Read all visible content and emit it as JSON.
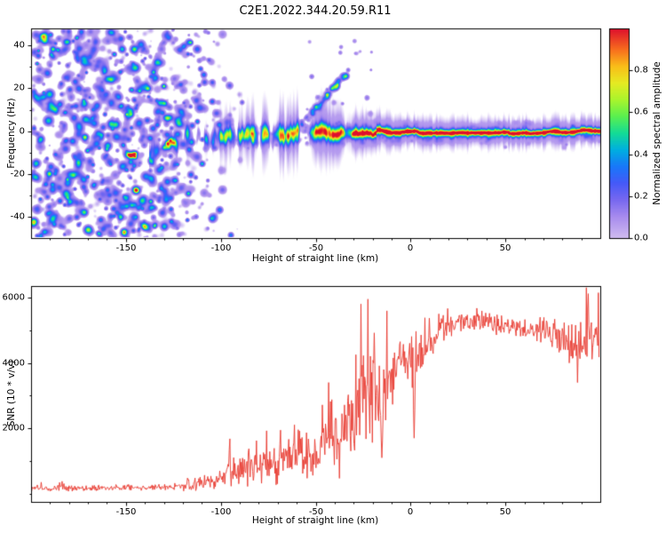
{
  "chart_data": [
    {
      "type": "heatmap",
      "title": "C2E1.2022.344.20.59.R11",
      "xlabel": "Height of straight line (km)",
      "ylabel": "Frequency (Hz)",
      "xlim": [
        -200,
        100
      ],
      "ylim": [
        -50,
        48
      ],
      "xticks": [
        -150,
        -100,
        -50,
        0,
        50
      ],
      "yticks": [
        -40,
        -20,
        0,
        20,
        40
      ],
      "grid": false,
      "background": "#ffffff",
      "axis_color": "#000000",
      "colorbar": {
        "label": "Normalized spectral amplitude",
        "ticks": [
          0.0,
          0.2,
          0.4,
          0.6,
          0.8
        ],
        "range": [
          0,
          1
        ],
        "colormap_stops": [
          [
            0.0,
            "#cfbaf0"
          ],
          [
            0.1,
            "#a88cee"
          ],
          [
            0.18,
            "#7869f0"
          ],
          [
            0.26,
            "#465af8"
          ],
          [
            0.34,
            "#1978fa"
          ],
          [
            0.42,
            "#00afe1"
          ],
          [
            0.5,
            "#14dc96"
          ],
          [
            0.58,
            "#5af050"
          ],
          [
            0.66,
            "#aaf52d"
          ],
          [
            0.74,
            "#e6eb23"
          ],
          [
            0.82,
            "#fabe19"
          ],
          [
            0.9,
            "#f86e1e"
          ],
          [
            1.0,
            "#de0f2d"
          ]
        ]
      },
      "noise": {
        "count": 1100,
        "x_range": [
          -200,
          -84
        ],
        "density_breaks": [
          [
            -200,
            1.0
          ],
          [
            -132,
            0.95
          ],
          [
            -115,
            0.5
          ],
          [
            -102,
            0.15
          ],
          [
            -84,
            0.01
          ]
        ],
        "amp_range": [
          0.04,
          0.4
        ],
        "sigma_range": [
          1.0,
          3.1
        ]
      },
      "halo_noise": {
        "count": 230,
        "x_range": [
          -95,
          100
        ],
        "f_spread": 7,
        "amp_range": [
          0.03,
          0.09
        ]
      },
      "streak": {
        "x_start": -58,
        "x_end": -33,
        "f_start": 3,
        "f_end": 28,
        "count": 70,
        "amp_range": [
          0.05,
          0.2
        ]
      },
      "sparse_dots": {
        "count": 18,
        "x_range": [
          -60,
          -20
        ],
        "f_range": [
          5,
          45
        ],
        "amp_range": [
          0.05,
          0.18
        ]
      },
      "clusters": [
        {
          "x": -147,
          "f": -11,
          "sx": 5,
          "sf": 4,
          "count": 14,
          "amp": 0.32
        },
        {
          "x": -128,
          "f": -6,
          "sx": 4,
          "sf": 3,
          "count": 10,
          "amp": 0.3
        }
      ],
      "band": {
        "x_start": -138,
        "centers": [
          [
            -138,
            -9
          ],
          [
            -128,
            -5
          ],
          [
            -120,
            -4
          ],
          [
            -110,
            -3
          ],
          [
            -100,
            -2.5
          ],
          [
            -90,
            -2
          ],
          [
            -80,
            -1.5
          ],
          [
            -70,
            -2
          ],
          [
            -62,
            -1
          ],
          [
            -55,
            -0.5
          ],
          [
            -48,
            -1
          ],
          [
            -40,
            -1
          ],
          [
            -32,
            -1
          ],
          [
            -25,
            -1.2
          ],
          [
            -18,
            -1
          ],
          [
            -10,
            -1
          ],
          [
            0,
            -0.9
          ],
          [
            20,
            -1
          ],
          [
            50,
            -1
          ],
          [
            100,
            -1
          ]
        ],
        "intensity": [
          [
            -138,
            0.3
          ],
          [
            -125,
            0.45
          ],
          [
            -112,
            0.55
          ],
          [
            -100,
            0.62
          ],
          [
            -88,
            0.68
          ],
          [
            -75,
            0.72
          ],
          [
            -62,
            0.78
          ],
          [
            -50,
            0.82
          ],
          [
            -40,
            0.88
          ],
          [
            -30,
            0.92
          ],
          [
            -22,
            0.96
          ],
          [
            -12,
            1.0
          ],
          [
            100,
            1.0
          ]
        ],
        "width": [
          [
            -138,
            1.8
          ],
          [
            -110,
            2.0
          ],
          [
            -80,
            2.2
          ],
          [
            -55,
            2.4
          ],
          [
            -35,
            1.8
          ],
          [
            -20,
            1.3
          ],
          [
            -5,
            1.0
          ],
          [
            100,
            0.95
          ]
        ],
        "wobble": [
          [
            -138,
            3.0
          ],
          [
            -100,
            2.2
          ],
          [
            -60,
            1.5
          ],
          [
            -30,
            0.8
          ],
          [
            -10,
            0.3
          ],
          [
            100,
            0.15
          ]
        ],
        "patch_end_x": -28,
        "haze_amp": 0.1,
        "haze_width_mult": 4.5
      }
    },
    {
      "type": "line",
      "xlabel": "Height of straight line (km)",
      "ylabel": "SNR (10 * v/v)",
      "xlim": [
        -200,
        100
      ],
      "ylim": [
        -250,
        6350
      ],
      "xticks": [
        -150,
        -100,
        -50,
        0,
        50
      ],
      "yticks": [
        2000,
        4000,
        6000
      ],
      "grid": false,
      "line_color": "#e8392f",
      "envelope": {
        "x": [
          -200,
          -185,
          -170,
          -155,
          -140,
          -130,
          -122,
          -116,
          -110,
          -104,
          -98,
          -92,
          -86,
          -80,
          -74,
          -68,
          -62,
          -57,
          -52,
          -47,
          -42,
          -37,
          -32,
          -28,
          -25,
          -22,
          -19,
          -16,
          -13,
          -10,
          -7,
          -4,
          -1,
          2,
          5,
          8,
          12,
          16,
          20,
          25,
          30,
          35,
          40,
          45,
          50,
          55,
          60,
          65,
          70,
          75,
          80,
          84,
          88,
          92,
          96,
          100
        ],
        "base": [
          170,
          170,
          175,
          175,
          180,
          190,
          210,
          260,
          330,
          420,
          560,
          700,
          820,
          950,
          900,
          950,
          1050,
          1150,
          1100,
          1250,
          1400,
          1700,
          2100,
          2600,
          3000,
          3300,
          3300,
          3200,
          3500,
          3800,
          4000,
          4150,
          4250,
          3500,
          4200,
          4550,
          4800,
          5000,
          5150,
          5250,
          5300,
          5250,
          5200,
          5150,
          5100,
          5050,
          5000,
          4950,
          4900,
          4850,
          4800,
          4650,
          4400,
          5000,
          4800,
          4900
        ],
        "spread": [
          110,
          110,
          115,
          115,
          120,
          130,
          160,
          220,
          260,
          330,
          420,
          520,
          620,
          750,
          700,
          750,
          820,
          880,
          820,
          900,
          1000,
          1250,
          1500,
          1900,
          2000,
          2300,
          1700,
          1700,
          1500,
          1300,
          1100,
          950,
          900,
          1500,
          900,
          700,
          600,
          500,
          450,
          420,
          400,
          400,
          380,
          360,
          360,
          360,
          360,
          380,
          420,
          460,
          550,
          750,
          900,
          1000,
          950,
          900
        ]
      },
      "spikes": [
        [
          -26,
          5800
        ],
        [
          -22.5,
          5950
        ],
        [
          -43,
          3400
        ],
        [
          92.5,
          6300
        ]
      ],
      "dips": [
        [
          2,
          1700
        ],
        [
          -15,
          1100
        ],
        [
          88,
          3400
        ]
      ]
    }
  ]
}
